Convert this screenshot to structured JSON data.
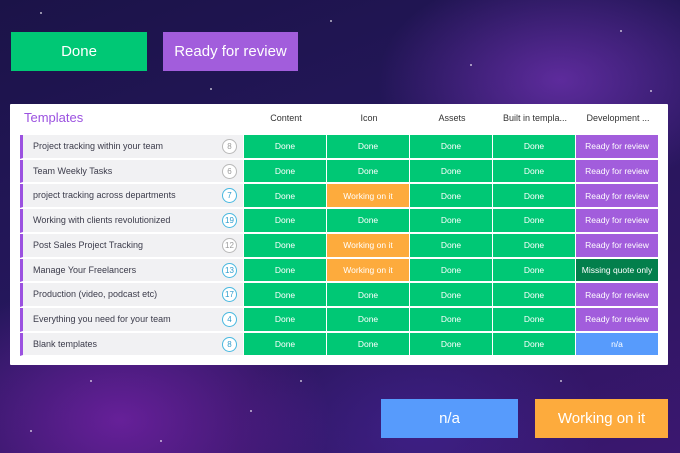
{
  "colors": {
    "done": "#00c875",
    "ready_for_review": "#a25ddc",
    "working_on_it": "#fdab3d",
    "na": "#579bfc",
    "missing_quote_only": "#037f4c",
    "group_accent": "#9b51e0"
  },
  "top_buttons": {
    "done_label": "Done",
    "ready_label": "Ready for review"
  },
  "bottom_buttons": {
    "na_label": "n/a",
    "working_label": "Working on it"
  },
  "board": {
    "title": "Templates",
    "columns": [
      "Content",
      "Icon",
      "Assets",
      "Built in templa...",
      "Development ..."
    ],
    "rows": [
      {
        "name": "Project tracking within your team",
        "count": "8",
        "count_style": "gray",
        "cells": [
          "Done",
          "Done",
          "Done",
          "Done",
          "Ready for review"
        ]
      },
      {
        "name": "Team Weekly Tasks",
        "count": "6",
        "count_style": "gray",
        "cells": [
          "Done",
          "Done",
          "Done",
          "Done",
          "Ready for review"
        ]
      },
      {
        "name": "project tracking across departments",
        "count": "7",
        "count_style": "blue",
        "cells": [
          "Done",
          "Working on it",
          "Done",
          "Done",
          "Ready for review"
        ]
      },
      {
        "name": "Working with clients revolutionized",
        "count": "19",
        "count_style": "blue",
        "cells": [
          "Done",
          "Done",
          "Done",
          "Done",
          "Ready for review"
        ]
      },
      {
        "name": "Post Sales Project Tracking",
        "count": "12",
        "count_style": "gray",
        "cells": [
          "Done",
          "Working on it",
          "Done",
          "Done",
          "Ready for review"
        ]
      },
      {
        "name": "Manage Your Freelancers",
        "count": "13",
        "count_style": "blue",
        "cells": [
          "Done",
          "Working on it",
          "Done",
          "Done",
          "Missing quote only"
        ]
      },
      {
        "name": "Production (video, podcast etc)",
        "count": "17",
        "count_style": "blue",
        "cells": [
          "Done",
          "Done",
          "Done",
          "Done",
          "Ready for review"
        ]
      },
      {
        "name": "Everything you need for your team",
        "count": "4",
        "count_style": "blue",
        "cells": [
          "Done",
          "Done",
          "Done",
          "Done",
          "Ready for review"
        ]
      },
      {
        "name": "Blank templates",
        "count": "8",
        "count_style": "blue",
        "cells": [
          "Done",
          "Done",
          "Done",
          "Done",
          "n/a"
        ]
      }
    ]
  }
}
